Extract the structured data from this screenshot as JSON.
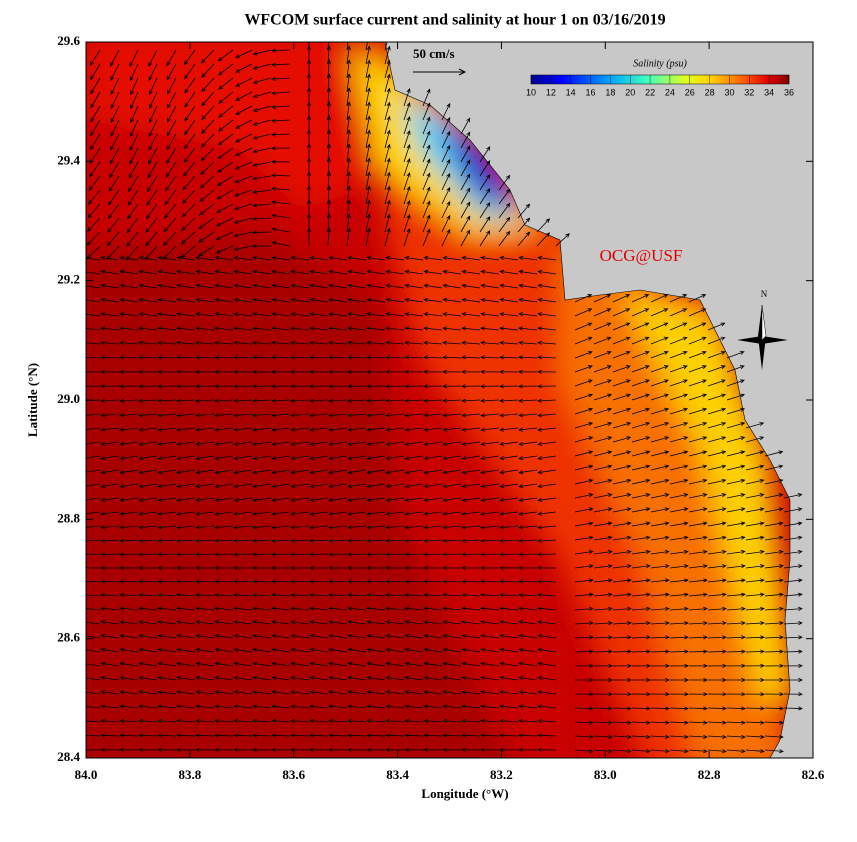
{
  "map": {
    "title": "WFCOM surface current and salinity at hour 1 on 03/16/2019",
    "x_axis": {
      "label": "Longitude (°W)",
      "lim": [
        84.0,
        82.6
      ],
      "ticks": [
        {
          "value": 84.0,
          "label": "84.0"
        },
        83.8,
        83.6,
        83.4,
        83.2,
        {
          "value": 83.0,
          "label": "83.0"
        },
        82.8,
        82.6
      ]
    },
    "y_axis": {
      "label": "Latitude (°N)",
      "lim": [
        28.4,
        29.6
      ],
      "ticks": [
        28.4,
        28.6,
        28.8,
        {
          "value": 29.0,
          "label": "29.0"
        },
        29.2,
        29.4,
        29.6
      ]
    },
    "scale_label": "50 cm/s",
    "colorbar": {
      "title": "Salinity (psu)",
      "lim": [
        10,
        36
      ],
      "ticks": [
        10,
        12,
        14,
        16,
        18,
        20,
        22,
        24,
        26,
        28,
        30,
        32,
        34,
        36
      ]
    },
    "credit": "OCG@USF",
    "compass": "N"
  }
}
